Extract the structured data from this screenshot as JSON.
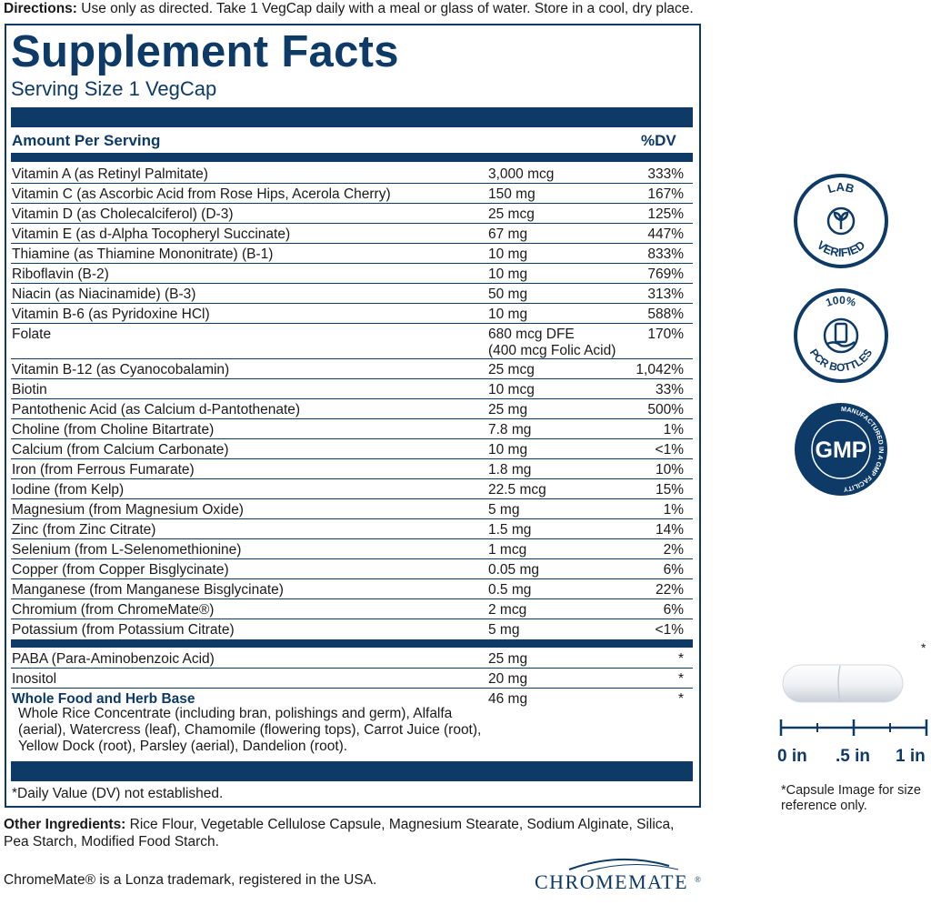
{
  "directions": {
    "label": "Directions:",
    "text": " Use only as directed. Take 1 VegCap daily with a meal or glass of water. Store in a cool, dry place."
  },
  "facts": {
    "title": "Supplement Facts",
    "serving": "Serving Size 1 VegCap",
    "amount_header": "Amount Per Serving",
    "dv_header": "%DV",
    "nutrients": [
      {
        "name": "Vitamin A (as Retinyl Palmitate)",
        "amount": "3,000 mcg",
        "dv": "333%"
      },
      {
        "name": "Vitamin C (as Ascorbic Acid from Rose Hips, Acerola Cherry)",
        "amount": "150 mg",
        "dv": "167%"
      },
      {
        "name": "Vitamin D (as Cholecalciferol) (D-3)",
        "amount": "25 mcg",
        "dv": "125%"
      },
      {
        "name": "Vitamin E (as d-Alpha Tocopheryl Succinate)",
        "amount": "67 mg",
        "dv": "447%"
      },
      {
        "name": "Thiamine (as Thiamine Mononitrate) (B-1)",
        "amount": "10 mg",
        "dv": "833%"
      },
      {
        "name": "Riboflavin (B-2)",
        "amount": "10 mg",
        "dv": "769%"
      },
      {
        "name": "Niacin (as Niacinamide) (B-3)",
        "amount": "50 mg",
        "dv": "313%"
      },
      {
        "name": "Vitamin B-6 (as Pyridoxine HCl)",
        "amount": "10 mg",
        "dv": "588%"
      },
      {
        "name": "Folate",
        "amount": "680 mcg DFE",
        "amount2": "(400 mcg Folic Acid)",
        "dv": "170%"
      },
      {
        "name": "Vitamin B-12 (as Cyanocobalamin)",
        "amount": "25 mcg",
        "dv": "1,042%"
      },
      {
        "name": "Biotin",
        "amount": "10 mcg",
        "dv": "33%"
      },
      {
        "name": "Pantothenic Acid (as Calcium d-Pantothenate)",
        "amount": "25 mg",
        "dv": "500%"
      },
      {
        "name": "Choline (from Choline Bitartrate)",
        "amount": "7.8 mg",
        "dv": "1%"
      },
      {
        "name": "Calcium (from Calcium Carbonate)",
        "amount": "10 mg",
        "dv": "<1%"
      },
      {
        "name": "Iron (from Ferrous Fumarate)",
        "amount": "1.8 mg",
        "dv": "10%"
      },
      {
        "name": "Iodine (from Kelp)",
        "amount": "22.5 mcg",
        "dv": "15%"
      },
      {
        "name": "Magnesium (from Magnesium Oxide)",
        "amount": "5 mg",
        "dv": "1%"
      },
      {
        "name": "Zinc (from Zinc Citrate)",
        "amount": "1.5 mg",
        "dv": "14%"
      },
      {
        "name": "Selenium (from L-Selenomethionine)",
        "amount": "1 mcg",
        "dv": "2%"
      },
      {
        "name": "Copper (from Copper Bisglycinate)",
        "amount": "0.05 mg",
        "dv": "6%"
      },
      {
        "name": "Manganese (from Manganese Bisglycinate)",
        "amount": "0.5 mg",
        "dv": "22%"
      },
      {
        "name": "Chromium (from ChromeMate®)",
        "amount": "2 mcg",
        "dv": "6%"
      },
      {
        "name": "Potassium (from Potassium Citrate)",
        "amount": "5 mg",
        "dv": "<1%"
      }
    ],
    "others": [
      {
        "name": "PABA (Para-Aminobenzoic Acid)",
        "amount": "25 mg",
        "dv": "*"
      },
      {
        "name": "Inositol",
        "amount": "20 mg",
        "dv": "*"
      },
      {
        "name": "Whole Food and Herb Base",
        "amount": "46 mg",
        "dv": "*"
      }
    ],
    "base_description": "Whole Rice Concentrate (including bran, polishings and germ), Alfalfa (aerial), Watercress (leaf), Chamomile (flowering tops), Carrot Juice (root), Yellow Dock (root), Parsley (aerial), Dandelion (root).",
    "footnote": "*Daily Value (DV) not established."
  },
  "other_ingredients": {
    "label": "Other Ingredients:",
    "text": " Rice Flour, Vegetable Cellulose Capsule, Magnesium Stearate, Sodium Alginate, Silica, Pea Starch, Modified Food Starch."
  },
  "trademark": "ChromeMate® is a Lonza trademark, registered in the USA.",
  "chromemate_logo": {
    "text": "CHROMEMATE",
    "mark": "®"
  },
  "badges": {
    "lab": {
      "top": "LAB",
      "bottom": "VERIFIED"
    },
    "pcr": {
      "top": "100%",
      "bottom": "PCR BOTTLES"
    },
    "gmp": {
      "center": "GMP",
      "ring": "MANUFACTURED IN A GMP FACILITY"
    }
  },
  "capsule": {
    "star": "*",
    "ruler": [
      "0 in",
      ".5 in",
      "1 in"
    ],
    "note": "*Capsule Image for size reference only."
  },
  "colors": {
    "navy": "#0d3a66"
  }
}
